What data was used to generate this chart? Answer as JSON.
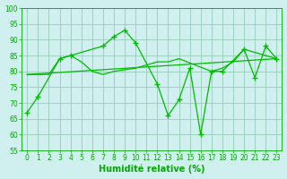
{
  "line1_x": [
    0,
    1,
    3,
    4,
    7,
    8,
    9,
    10,
    12,
    13,
    14,
    15,
    16,
    17,
    18,
    20,
    21,
    22,
    23
  ],
  "line1_y": [
    67,
    72,
    84,
    85,
    88,
    91,
    93,
    89,
    76,
    66,
    71,
    81,
    60,
    80,
    80,
    87,
    78,
    88,
    84
  ],
  "line2_x": [
    0,
    1,
    2,
    3,
    4,
    5,
    6,
    7,
    8,
    10,
    11,
    12,
    13,
    14,
    17,
    18,
    19,
    20,
    23
  ],
  "line2_y": [
    79,
    79,
    79,
    84,
    85,
    83,
    80,
    79,
    80,
    81,
    82,
    83,
    83,
    84,
    80,
    81,
    83,
    87,
    84
  ],
  "line3_x": [
    0,
    23
  ],
  "line3_y": [
    79,
    84
  ],
  "line_color": "#00bb00",
  "background_color": "#d0f0f0",
  "grid_color": "#99ccbb",
  "tick_color": "#00aa00",
  "tick_fontsize": 5.5,
  "xlabel": "Humidité relative (%)",
  "xlabel_color": "#00aa00",
  "xlabel_fontsize": 7,
  "ylim": [
    55,
    100
  ],
  "xlim": [
    -0.5,
    23.5
  ],
  "yticks": [
    55,
    60,
    65,
    70,
    75,
    80,
    85,
    90,
    95,
    100
  ],
  "xticks": [
    0,
    1,
    2,
    3,
    4,
    5,
    6,
    7,
    8,
    9,
    10,
    11,
    12,
    13,
    14,
    15,
    16,
    17,
    18,
    19,
    20,
    21,
    22,
    23
  ]
}
